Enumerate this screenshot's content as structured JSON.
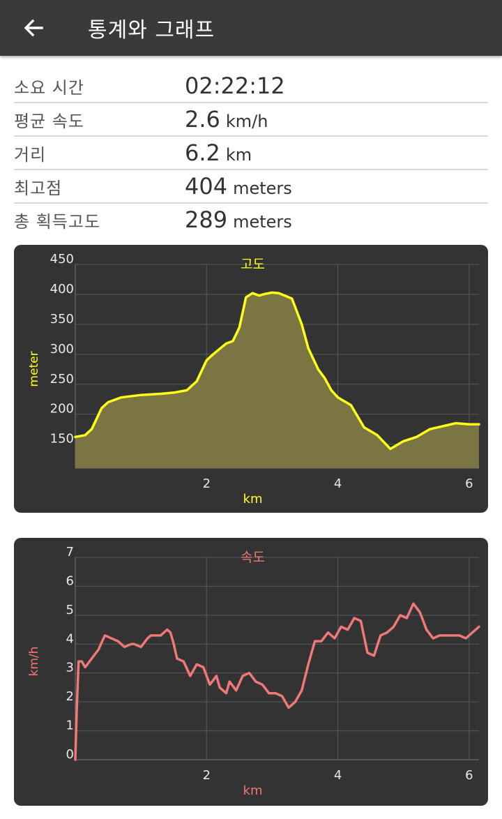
{
  "appbar": {
    "title": "통계와 그래프",
    "back_icon": "arrow-left-icon"
  },
  "stats": [
    {
      "label": "소요 시간",
      "value": "02:22:12",
      "unit": ""
    },
    {
      "label": "평균 속도",
      "value": "2.6",
      "unit": "km/h"
    },
    {
      "label": "거리",
      "value": "6.2",
      "unit": "km"
    },
    {
      "label": "최고점",
      "value": "404",
      "unit": "meters"
    },
    {
      "label": "총 획득고도",
      "value": "289",
      "unit": "meters"
    }
  ],
  "chart_data": [
    {
      "type": "area",
      "title": "고도",
      "xlabel": "km",
      "ylabel": "meter",
      "xlim": [
        0,
        6.15
      ],
      "ylim": [
        110,
        450
      ],
      "x_ticks": [
        2,
        4,
        6
      ],
      "y_ticks": [
        150,
        200,
        250,
        300,
        350,
        400,
        450
      ],
      "grid": true,
      "line_color": "#ffff1a",
      "fill_color": "#7b7543",
      "title_color": "#ffff1a",
      "x": [
        0,
        0.15,
        0.25,
        0.4,
        0.5,
        0.7,
        1.0,
        1.3,
        1.5,
        1.7,
        1.85,
        2.0,
        2.1,
        2.3,
        2.4,
        2.5,
        2.6,
        2.7,
        2.8,
        2.9,
        3.0,
        3.1,
        3.3,
        3.45,
        3.55,
        3.7,
        3.8,
        3.9,
        4.0,
        4.2,
        4.4,
        4.6,
        4.8,
        5.0,
        5.2,
        5.4,
        5.6,
        5.8,
        6.0,
        6.15
      ],
      "values": [
        162,
        165,
        175,
        210,
        220,
        228,
        232,
        234,
        236,
        240,
        255,
        290,
        300,
        318,
        322,
        345,
        395,
        402,
        398,
        401,
        403,
        402,
        393,
        350,
        310,
        275,
        260,
        240,
        228,
        215,
        178,
        165,
        142,
        155,
        162,
        175,
        180,
        185,
        183,
        183
      ]
    },
    {
      "type": "line",
      "title": "속도",
      "xlabel": "km",
      "ylabel": "km/h",
      "xlim": [
        0,
        6.15
      ],
      "ylim": [
        0,
        7
      ],
      "x_ticks": [
        2,
        4,
        6
      ],
      "y_ticks": [
        0,
        1,
        2,
        3,
        4,
        5,
        6,
        7
      ],
      "grid": true,
      "line_color": "#f07878",
      "title_color": "#f07878",
      "x": [
        0,
        0.02,
        0.05,
        0.1,
        0.15,
        0.25,
        0.35,
        0.45,
        0.55,
        0.65,
        0.75,
        0.85,
        0.9,
        1.0,
        1.1,
        1.15,
        1.2,
        1.3,
        1.4,
        1.45,
        1.5,
        1.55,
        1.65,
        1.75,
        1.85,
        1.95,
        2.05,
        2.15,
        2.2,
        2.3,
        2.35,
        2.45,
        2.55,
        2.65,
        2.75,
        2.85,
        2.95,
        3.05,
        3.15,
        3.25,
        3.35,
        3.45,
        3.55,
        3.65,
        3.75,
        3.85,
        3.95,
        4.05,
        4.15,
        4.25,
        4.35,
        4.45,
        4.55,
        4.65,
        4.75,
        4.85,
        4.95,
        5.05,
        5.15,
        5.25,
        5.35,
        5.45,
        5.55,
        5.65,
        5.75,
        5.85,
        5.95,
        6.05,
        6.15
      ],
      "values": [
        0,
        1.6,
        3.4,
        3.4,
        3.2,
        3.5,
        3.8,
        4.3,
        4.2,
        4.1,
        3.9,
        4.0,
        4.0,
        3.9,
        4.2,
        4.3,
        4.3,
        4.3,
        4.5,
        4.4,
        4.0,
        3.5,
        3.4,
        2.9,
        3.3,
        3.2,
        2.6,
        2.9,
        2.5,
        2.3,
        2.7,
        2.4,
        2.9,
        3.0,
        2.7,
        2.6,
        2.3,
        2.3,
        2.2,
        1.8,
        2.0,
        2.4,
        3.3,
        4.1,
        4.1,
        4.4,
        4.2,
        4.6,
        4.5,
        4.9,
        4.8,
        3.7,
        3.6,
        4.3,
        4.4,
        4.6,
        5.0,
        4.9,
        5.4,
        5.1,
        4.5,
        4.2,
        4.3,
        4.3,
        4.3,
        4.3,
        4.2,
        4.4,
        4.6
      ]
    }
  ]
}
